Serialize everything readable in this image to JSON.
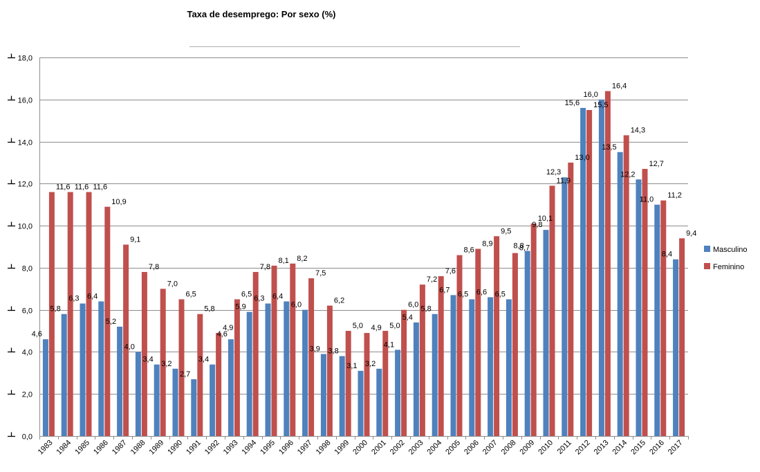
{
  "chart_data": {
    "type": "bar",
    "title": "Taxa de desemprego: Por sexo (%)",
    "categories": [
      "1983",
      "1984",
      "1985",
      "1986",
      "1987",
      "1988",
      "1989",
      "1990",
      "1991",
      "1992",
      "1993",
      "1994",
      "1995",
      "1996",
      "1997",
      "1998",
      "1999",
      "2000",
      "2001",
      "2002",
      "2003",
      "2004",
      "2005",
      "2006",
      "2007",
      "2008",
      "2009",
      "2010",
      "2011",
      "2012",
      "2013",
      "2014",
      "2015",
      "2016",
      "2017"
    ],
    "series": [
      {
        "name": "Masculino",
        "color": "#4F81BD",
        "values": [
          4.6,
          5.8,
          6.3,
          6.4,
          5.2,
          4.0,
          3.4,
          3.2,
          2.7,
          3.4,
          4.6,
          5.9,
          6.3,
          6.4,
          6.0,
          3.9,
          3.8,
          3.1,
          3.2,
          4.1,
          5.4,
          5.8,
          6.7,
          6.5,
          6.6,
          6.5,
          8.8,
          9.8,
          12.3,
          15.6,
          16.0,
          13.5,
          12.2,
          11.0,
          8.4
        ]
      },
      {
        "name": "Feminino",
        "color": "#C0504D",
        "values": [
          11.6,
          11.6,
          11.6,
          10.9,
          9.1,
          7.8,
          7.0,
          6.5,
          5.8,
          4.9,
          6.5,
          7.8,
          8.1,
          8.2,
          7.5,
          6.2,
          5.0,
          4.9,
          5.0,
          6.0,
          7.2,
          7.6,
          8.6,
          8.9,
          9.5,
          8.7,
          10.1,
          11.9,
          13.0,
          15.5,
          16.4,
          14.3,
          12.7,
          11.2,
          9.4
        ]
      }
    ],
    "ylim": [
      0,
      18
    ],
    "yticks": [
      0,
      2,
      4,
      6,
      8,
      10,
      12,
      14,
      16,
      18
    ],
    "ytick_labels": [
      "0,0",
      "2,0",
      "4,0",
      "6,0",
      "8,0",
      "10,0",
      "12,0",
      "14,0",
      "16,0",
      "18,0"
    ],
    "grid": true,
    "legend_position": "right",
    "data_labels": true,
    "decimal_separator": ","
  }
}
